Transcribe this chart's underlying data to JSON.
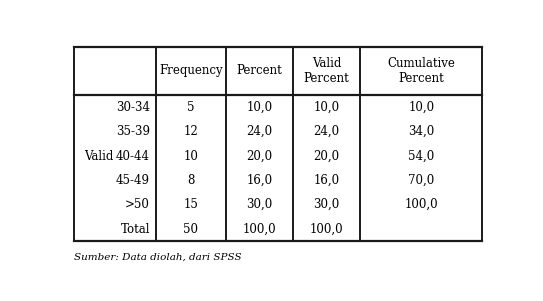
{
  "col_headers": [
    "",
    "Frequency",
    "Percent",
    "Valid\nPercent",
    "Cumulative\nPercent"
  ],
  "row_label": "Valid",
  "rows": [
    [
      "30-34",
      "5",
      "10,0",
      "10,0",
      "10,0"
    ],
    [
      "35-39",
      "12",
      "24,0",
      "24,0",
      "34,0"
    ],
    [
      "40-44",
      "10",
      "20,0",
      "20,0",
      "54,0"
    ],
    [
      "45-49",
      "8",
      "16,0",
      "16,0",
      "70,0"
    ],
    [
      ">50",
      "15",
      "30,0",
      "30,0",
      "100,0"
    ],
    [
      "Total",
      "50",
      "100,0",
      "100,0",
      ""
    ]
  ],
  "footer": "Sumber: Data diolah, dari SPSS",
  "bg_color": "#ffffff",
  "text_color": "#000000",
  "font_size": 8.5,
  "header_font_size": 8.5,
  "line_color": "#1a1a1a"
}
